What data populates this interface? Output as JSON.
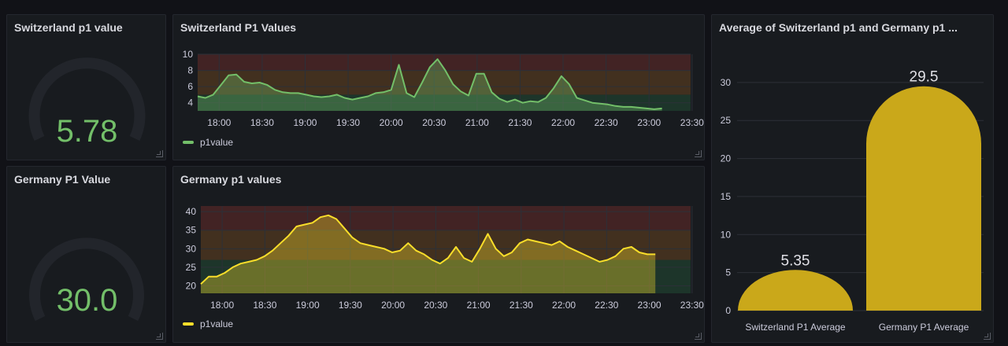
{
  "panels": {
    "switzerland_gauge": {
      "title": "Switzerland p1 value",
      "value": "5.78",
      "value_color": "#73bf69"
    },
    "germany_gauge": {
      "title": "Germany P1 Value",
      "value": "30.0",
      "value_color": "#73bf69"
    },
    "switzerland_series": {
      "title": "Switzerland P1 Values",
      "legend": "p1value",
      "color": "#73bf69"
    },
    "germany_series": {
      "title": "Germany p1 values",
      "legend": "p1value",
      "color": "#fade2a"
    },
    "average_bar": {
      "title": "Average of Switzerland p1 and Germany p1 ...",
      "color": "#caa81a"
    }
  },
  "chart_data": [
    {
      "type": "line",
      "title": "Switzerland P1 Values",
      "series": [
        {
          "name": "p1value",
          "values": [
            4.8,
            4.6,
            5.0,
            6.2,
            7.4,
            7.5,
            6.6,
            6.4,
            6.5,
            6.2,
            5.6,
            5.3,
            5.2,
            5.2,
            5.0,
            4.8,
            4.7,
            4.8,
            5.0,
            4.6,
            4.4,
            4.6,
            4.8,
            5.2,
            5.3,
            5.6,
            8.7,
            5.2,
            4.7,
            6.5,
            8.4,
            9.4,
            8.0,
            6.3,
            5.4,
            4.9,
            7.6,
            7.6,
            5.3,
            4.5,
            4.1,
            4.4,
            4.0,
            4.2,
            4.1,
            4.6,
            5.8,
            7.3,
            6.3,
            4.6,
            4.3,
            4.0,
            3.9,
            3.8,
            3.6,
            3.5,
            3.5,
            3.4,
            3.3,
            3.2,
            3.3
          ]
        }
      ],
      "x_start": "17:45",
      "x_step_minutes": 5.4,
      "x_ticks": [
        "18:00",
        "18:30",
        "19:00",
        "19:30",
        "20:00",
        "20:30",
        "21:00",
        "21:30",
        "22:00",
        "22:30",
        "23:00",
        "23:30"
      ],
      "y_ticks": [
        "4",
        "6",
        "8",
        "10"
      ],
      "ylim": [
        3,
        10
      ],
      "thresholds": [
        {
          "from": 3,
          "to": 5,
          "color": "#1f3a2d"
        },
        {
          "from": 5,
          "to": 8,
          "color": "#4a3420"
        },
        {
          "from": 8,
          "to": 10,
          "color": "#4a2526"
        }
      ],
      "grid": true,
      "legend_position": "bottom-left"
    },
    {
      "type": "line",
      "title": "Germany p1 values",
      "series": [
        {
          "name": "p1value",
          "values": [
            20.5,
            22.5,
            22.5,
            23.5,
            25.0,
            26.0,
            26.5,
            27.0,
            28.0,
            29.5,
            31.5,
            33.5,
            36.0,
            36.5,
            37.0,
            38.5,
            39.0,
            38.0,
            35.5,
            33.0,
            31.5,
            31.0,
            30.5,
            30.0,
            29.0,
            29.5,
            31.5,
            29.5,
            28.5,
            27.0,
            26.0,
            27.5,
            30.5,
            27.5,
            26.5,
            30.0,
            34.0,
            30.0,
            28.0,
            29.0,
            31.5,
            32.5,
            32.0,
            31.5,
            31.0,
            32.0,
            30.5,
            29.5,
            28.5,
            27.5,
            26.5,
            27.0,
            28.0,
            30.0,
            30.5,
            29.0,
            28.5,
            28.5
          ]
        }
      ],
      "x_start": "17:45",
      "x_step_minutes": 5.6,
      "x_ticks": [
        "18:00",
        "18:30",
        "19:00",
        "19:30",
        "20:00",
        "20:30",
        "21:00",
        "21:30",
        "22:00",
        "22:30",
        "23:00",
        "23:30"
      ],
      "y_ticks": [
        "20",
        "25",
        "30",
        "35",
        "40"
      ],
      "ylim": [
        18,
        41.5
      ],
      "thresholds": [
        {
          "from": 18,
          "to": 27,
          "color": "#1f3a2d"
        },
        {
          "from": 27,
          "to": 35,
          "color": "#4a3420"
        },
        {
          "from": 35,
          "to": 41.5,
          "color": "#4a2526"
        }
      ],
      "grid": true,
      "legend_position": "bottom-left"
    },
    {
      "type": "bar",
      "title": "Average of Switzerland p1 and Germany p1 ...",
      "categories": [
        "Switzerland P1 Average",
        "Germany P1 Average"
      ],
      "values": [
        5.35,
        29.5
      ],
      "value_labels": [
        "5.35",
        "29.5"
      ],
      "y_ticks": [
        "0",
        "5",
        "10",
        "15",
        "20",
        "25",
        "30"
      ],
      "ylim": [
        0,
        33.5
      ],
      "grid": true
    }
  ]
}
